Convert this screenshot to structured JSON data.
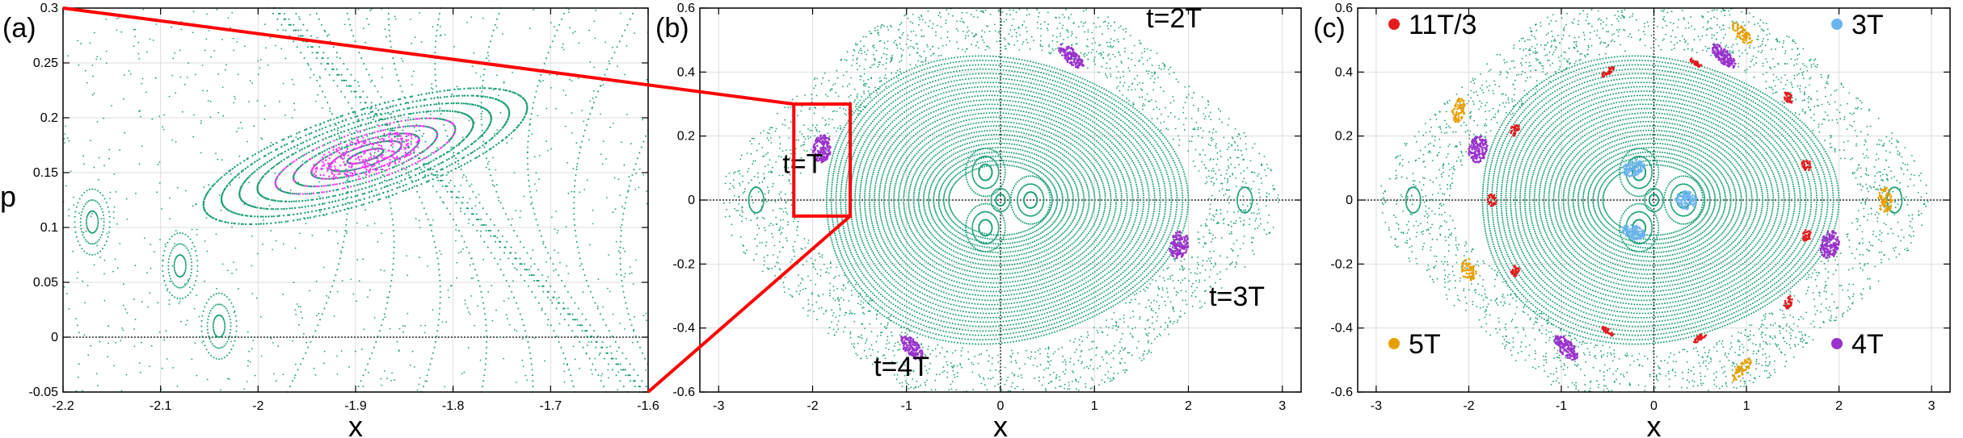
{
  "colors": {
    "orbit_green": "#1a9e77",
    "island_magenta": "#ff33ff",
    "island_purple": "#9932cc",
    "island_red": "#e41a1c",
    "island_blue": "#6cb4ee",
    "island_orange": "#e69f00",
    "zoom_box": "#ff0000",
    "axis": "#000000",
    "grid": "#dddddd"
  },
  "chart_data": [
    {
      "type": "scatter",
      "panel_label": "(a)",
      "xlabel": "x",
      "ylabel": "p",
      "xlim": [
        -2.2,
        -1.6
      ],
      "ylim": [
        -0.05,
        0.3
      ],
      "xticks": [
        "-2.2",
        "-2.1",
        "-2",
        "-1.9",
        "-1.8",
        "-1.7",
        "-1.6"
      ],
      "yticks": [
        "-0.05",
        "0",
        "0.05",
        "0.1",
        "0.15",
        "0.2",
        "0.25",
        "0.3"
      ],
      "grid": true,
      "zero_line": "p = 0 (dotted)",
      "island_center": [
        -1.89,
        0.165
      ],
      "side_islands": [
        [
          -2.17,
          0.105
        ],
        [
          -2.08,
          0.065
        ],
        [
          -2.04,
          0.01
        ]
      ]
    },
    {
      "type": "scatter",
      "panel_label": "(b)",
      "xlabel": "x",
      "xlim": [
        -3.2,
        3.2
      ],
      "ylim": [
        -0.6,
        0.6
      ],
      "xticks": [
        "-3",
        "-2",
        "-1",
        "0",
        "1",
        "2",
        "3"
      ],
      "yticks": [
        "-0.6",
        "-0.4",
        "-0.2",
        "0",
        "0.2",
        "0.4",
        "0.6"
      ],
      "grid": true,
      "zoom_box": {
        "x": [
          -2.2,
          -1.6
        ],
        "p": [
          -0.05,
          0.3
        ]
      },
      "annotations": [
        {
          "text": "t=T",
          "x": -2.32,
          "p": 0.085
        },
        {
          "text": "t=2T",
          "x": 1.55,
          "p": 0.54
        },
        {
          "text": "t=3T",
          "x": 2.22,
          "p": -0.33
        },
        {
          "text": "t=4T",
          "x": -1.35,
          "p": -0.55
        }
      ],
      "islands_purple": [
        [
          -1.9,
          0.16
        ],
        [
          0.75,
          0.45
        ],
        [
          1.9,
          -0.14
        ],
        [
          -0.95,
          -0.46
        ]
      ]
    },
    {
      "type": "scatter",
      "panel_label": "(c)",
      "xlabel": "x",
      "xlim": [
        -3.2,
        3.2
      ],
      "ylim": [
        -0.6,
        0.6
      ],
      "xticks": [
        "-3",
        "-2",
        "-1",
        "0",
        "1",
        "2",
        "3"
      ],
      "yticks": [
        "-0.6",
        "-0.4",
        "-0.2",
        "0",
        "0.2",
        "0.4",
        "0.6"
      ],
      "grid": true,
      "legend": [
        {
          "label": "11T/3",
          "color_key": "island_red",
          "placement": "top-left"
        },
        {
          "label": "3T",
          "color_key": "island_blue",
          "placement": "top-right"
        },
        {
          "label": "5T",
          "color_key": "island_orange",
          "placement": "bottom-left"
        },
        {
          "label": "4T",
          "color_key": "island_purple",
          "placement": "bottom-right"
        }
      ],
      "islands_purple": [
        [
          -1.9,
          0.16
        ],
        [
          0.75,
          0.45
        ],
        [
          1.9,
          -0.14
        ],
        [
          -0.95,
          -0.46
        ]
      ],
      "islands_blue": [
        [
          -0.22,
          0.1
        ],
        [
          -0.22,
          -0.1
        ],
        [
          0.35,
          0.0
        ]
      ],
      "islands_orange": [
        [
          -2.12,
          0.28
        ],
        [
          0.95,
          0.52
        ],
        [
          -2.0,
          -0.22
        ],
        [
          2.5,
          0.0
        ],
        [
          0.95,
          -0.53
        ]
      ],
      "islands_red": [
        [
          -1.75,
          0.0
        ],
        [
          -1.5,
          0.22
        ],
        [
          -0.5,
          0.4
        ],
        [
          0.45,
          0.43
        ],
        [
          1.45,
          0.32
        ],
        [
          1.65,
          0.11
        ],
        [
          1.65,
          -0.11
        ],
        [
          1.45,
          -0.32
        ],
        [
          0.5,
          -0.43
        ],
        [
          -0.5,
          -0.41
        ],
        [
          -1.5,
          -0.22
        ]
      ]
    }
  ]
}
